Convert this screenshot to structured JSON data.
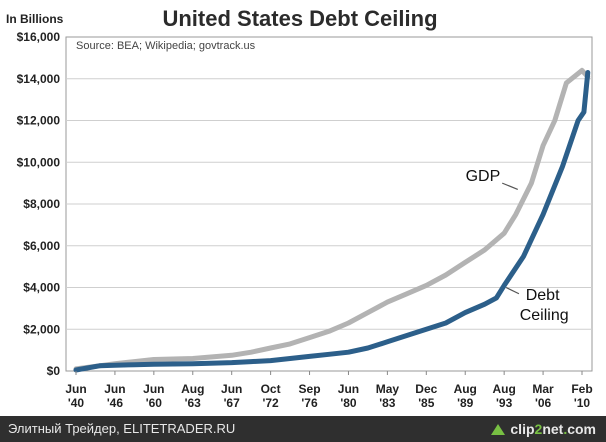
{
  "chart_data": {
    "type": "line",
    "title": "United States Debt Ceiling",
    "subtitle": "Source: BEA; Wikipedia; govtrack.us",
    "ylabel": "In Billions",
    "ylim": [
      0,
      16000
    ],
    "yticks": [
      0,
      2000,
      4000,
      6000,
      8000,
      10000,
      12000,
      14000,
      16000
    ],
    "ytick_labels": [
      "$0",
      "$2,000",
      "$4,000",
      "$6,000",
      "$8,000",
      "$10,000",
      "$12,000",
      "$14,000",
      "$16,000"
    ],
    "categories": [
      [
        "Jun",
        "'40"
      ],
      [
        "Jun",
        "'46"
      ],
      [
        "Jun",
        "'60"
      ],
      [
        "Aug",
        "'63"
      ],
      [
        "Jun",
        "'67"
      ],
      [
        "Oct",
        "'72"
      ],
      [
        "Sep",
        "'76"
      ],
      [
        "Jun",
        "'80"
      ],
      [
        "May",
        "'83"
      ],
      [
        "Dec",
        "'85"
      ],
      [
        "Aug",
        "'89"
      ],
      [
        "Aug",
        "'93"
      ],
      [
        "Mar",
        "'06"
      ],
      [
        "Feb",
        "'10"
      ]
    ],
    "grid": true,
    "series": [
      {
        "name": "GDP",
        "label_lines": [
          "GDP"
        ],
        "color": "#b3b3b3",
        "x": [
          0,
          0.6,
          1,
          1.5,
          2,
          3,
          4,
          4.5,
          5,
          5.5,
          6,
          6.5,
          7,
          7.5,
          8,
          8.5,
          9,
          9.5,
          10,
          10.5,
          11,
          11.3,
          11.7,
          12,
          12.3,
          12.6,
          13,
          13.15
        ],
        "y": [
          100,
          250,
          350,
          450,
          550,
          600,
          750,
          900,
          1100,
          1300,
          1600,
          1900,
          2300,
          2800,
          3300,
          3700,
          4100,
          4600,
          5200,
          5800,
          6600,
          7500,
          9000,
          10800,
          12000,
          13800,
          14400,
          14100
        ]
      },
      {
        "name": "Debt Ceiling",
        "label_lines": [
          "Debt",
          "Ceiling"
        ],
        "color": "#2c5f8a",
        "x": [
          0,
          0.6,
          1,
          1.5,
          2,
          3,
          4,
          4.5,
          5,
          5.5,
          6,
          6.5,
          7,
          7.5,
          8,
          8.5,
          9,
          9.5,
          10,
          10.5,
          10.8,
          11,
          11.5,
          12,
          12.5,
          12.9,
          13.05,
          13.15
        ],
        "y": [
          50,
          250,
          280,
          300,
          320,
          350,
          400,
          450,
          500,
          600,
          700,
          800,
          900,
          1100,
          1400,
          1700,
          2000,
          2300,
          2800,
          3200,
          3500,
          4100,
          5500,
          7500,
          9800,
          12000,
          12400,
          14300
        ]
      }
    ]
  },
  "footer": {
    "credit": "Элитный Трейдер, ELITETRADER.RU",
    "logo_left": "clip",
    "logo_num": "2",
    "logo_right": "net",
    "logo_dot": ".",
    "logo_tld": "com"
  }
}
